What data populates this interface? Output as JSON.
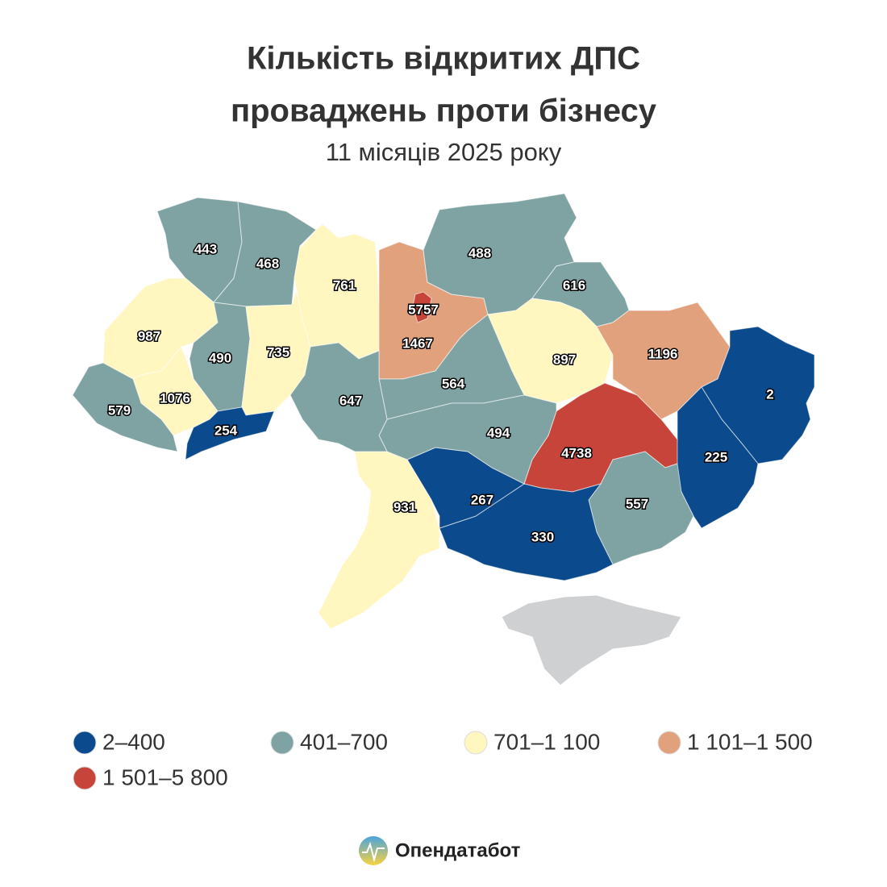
{
  "chart_data": {
    "type": "choropleth",
    "title": [
      "Кількість відкритих ДПС",
      "проваджень проти бізнесу"
    ],
    "subtitle": "11 місяців 2025 року",
    "values": [
      443,
      468,
      987,
      490,
      735,
      761,
      1467,
      5757,
      488,
      616,
      897,
      1196,
      2,
      225,
      4738,
      557,
      330,
      267,
      931,
      564,
      494,
      647,
      1076,
      579,
      254
    ],
    "legend": [
      {
        "min": 2,
        "max": 400,
        "label": "2–400",
        "color": "#0b4a8c"
      },
      {
        "min": 401,
        "max": 700,
        "label": "401–700",
        "color": "#7fa3a3"
      },
      {
        "min": 701,
        "max": 1100,
        "label": "701–1 100",
        "color": "#fff6c0"
      },
      {
        "min": 1101,
        "max": 1500,
        "label": "1 101–1 500",
        "color": "#e2a17d"
      },
      {
        "min": 1501,
        "max": 5800,
        "label": "1 501–5 800",
        "color": "#c7443a"
      }
    ],
    "brand": "Опендатабот"
  }
}
